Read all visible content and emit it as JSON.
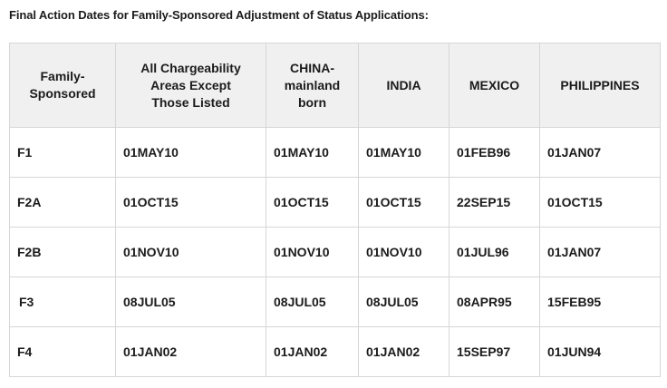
{
  "page": {
    "title": "Final Action Dates for Family-Sponsored Adjustment of Status Applications:"
  },
  "table": {
    "headers": [
      "Family-\nSponsored",
      "All Chargeability\nAreas Except\nThose Listed",
      "CHINA-\nmainland\nborn",
      "INDIA",
      "MEXICO",
      "PHILIPPINES"
    ],
    "rows": [
      [
        "F1",
        "01MAY10",
        "01MAY10",
        "01MAY10",
        "01FEB96",
        "01JAN07"
      ],
      [
        "F2A",
        "01OCT15",
        "01OCT15",
        "01OCT15",
        "22SEP15",
        "01OCT15"
      ],
      [
        "F2B",
        "01NOV10",
        "01NOV10",
        "01NOV10",
        "01JUL96",
        "01JAN07"
      ],
      [
        "F3",
        "08JUL05",
        "08JUL05",
        "08JUL05",
        "08APR95",
        "15FEB95"
      ],
      [
        "F4",
        "01JAN02",
        "01JAN02",
        "01JAN02",
        "15SEP97",
        "01JUN94"
      ]
    ]
  }
}
